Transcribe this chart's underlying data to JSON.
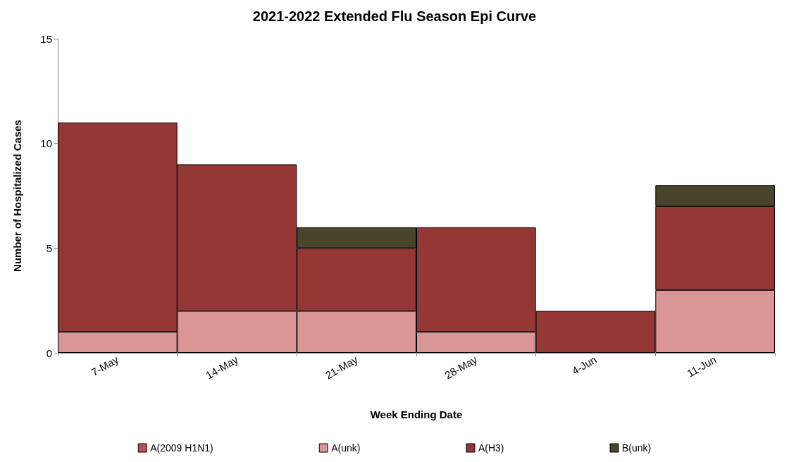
{
  "chart_data": {
    "type": "bar",
    "title": "2021-2022 Extended Flu Season Epi Curve",
    "xlabel": "Week Ending Date",
    "ylabel": "Number of Hospitalized Cases",
    "categories": [
      "7-May",
      "14-May",
      "21-May",
      "28-May",
      "4-Jun",
      "11-Jun"
    ],
    "stacked": true,
    "ylim": [
      0,
      15
    ],
    "yticks": [
      0,
      5,
      10,
      15
    ],
    "grid": false,
    "legend": "bottom",
    "series": [
      {
        "name": "A(2009 H1N1)",
        "color": "#c0504d",
        "values": [
          0,
          0,
          0,
          0,
          0,
          0
        ]
      },
      {
        "name": "A(unk)",
        "color": "#da9694",
        "values": [
          1,
          2,
          2,
          1,
          0,
          3
        ]
      },
      {
        "name": "A(H3)",
        "color": "#953735",
        "values": [
          10,
          7,
          3,
          5,
          2,
          4
        ]
      },
      {
        "name": "B(unk)",
        "color": "#4a452a",
        "values": [
          0,
          0,
          1,
          0,
          0,
          1
        ]
      }
    ]
  }
}
